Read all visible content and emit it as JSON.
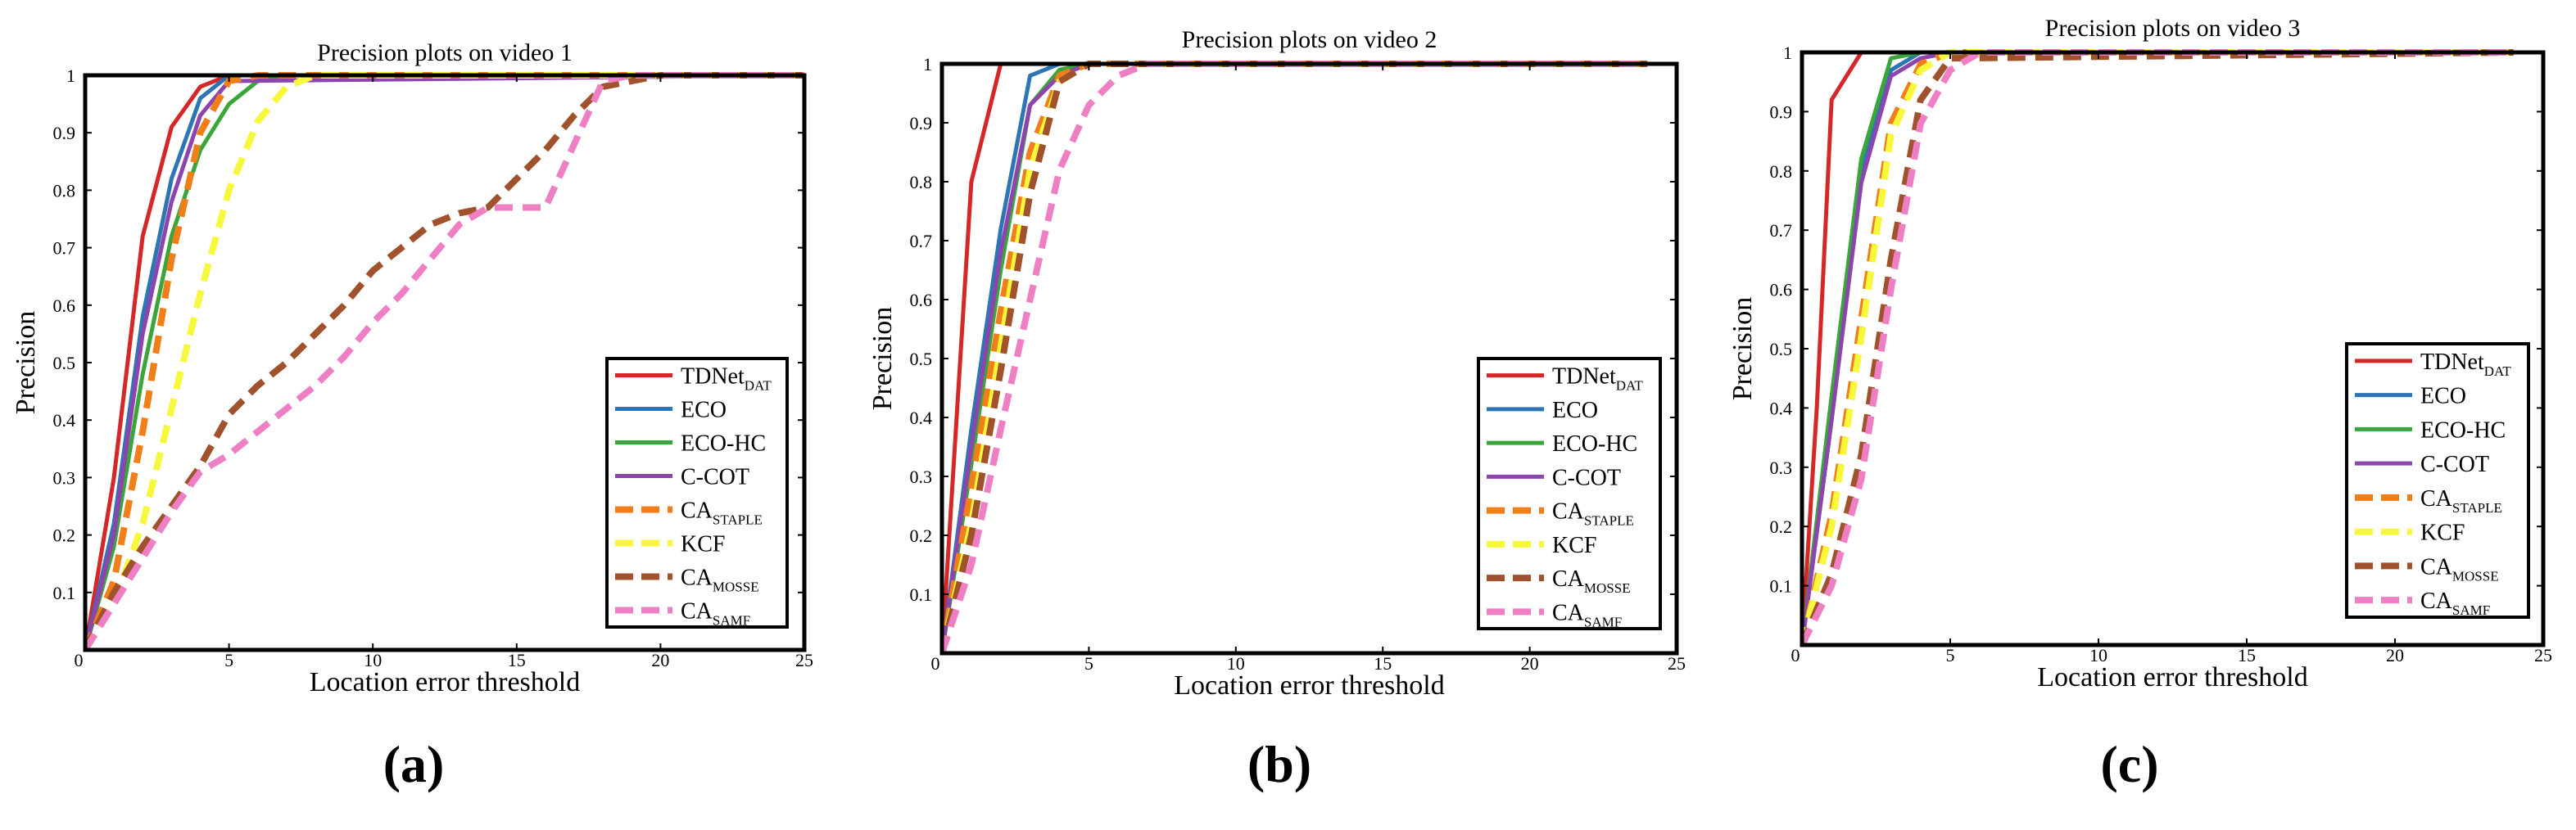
{
  "chart_data": [
    {
      "type": "line",
      "title": "Precision plots on video 1",
      "xlabel": "Location error threshold",
      "ylabel": "Precision",
      "xlim": [
        0,
        25
      ],
      "ylim": [
        0,
        1
      ],
      "xticks": [
        "0",
        "5",
        "10",
        "15",
        "20",
        "25"
      ],
      "yticks": [
        "0",
        "0.1",
        "0.2",
        "0.3",
        "0.4",
        "0.5",
        "0.6",
        "0.7",
        "0.8",
        "0.9",
        "1"
      ],
      "panel_label": "(a)",
      "series": [
        {
          "name": "TDNet",
          "sub": "DAT",
          "color": "#d62728",
          "dash": false,
          "x": [
            0,
            1,
            2,
            3,
            4,
            5,
            25
          ],
          "y": [
            0,
            0.3,
            0.72,
            0.91,
            0.98,
            1.0,
            1.0
          ]
        },
        {
          "name": "ECO",
          "sub": "",
          "color": "#2e75b6",
          "dash": false,
          "x": [
            0,
            1,
            2,
            3,
            4,
            5,
            25
          ],
          "y": [
            0,
            0.22,
            0.58,
            0.82,
            0.96,
            1.0,
            1.0
          ]
        },
        {
          "name": "ECO-HC",
          "sub": "",
          "color": "#3aa63a",
          "dash": false,
          "x": [
            0,
            1,
            2,
            3,
            4,
            5,
            6,
            7,
            25
          ],
          "y": [
            0,
            0.18,
            0.48,
            0.72,
            0.87,
            0.95,
            0.99,
            1.0,
            1.0
          ]
        },
        {
          "name": "C-COT",
          "sub": "",
          "color": "#8e44ad",
          "dash": false,
          "x": [
            0,
            1,
            2,
            3,
            4,
            5,
            25
          ],
          "y": [
            0,
            0.2,
            0.55,
            0.78,
            0.93,
            0.99,
            1.0
          ]
        },
        {
          "name": "CA",
          "sub": "STAPLE",
          "color": "#f07f1a",
          "dash": true,
          "x": [
            0,
            1,
            2,
            3,
            4,
            5,
            6,
            25
          ],
          "y": [
            0,
            0.12,
            0.38,
            0.68,
            0.9,
            0.99,
            1.0,
            1.0
          ]
        },
        {
          "name": "KCF",
          "sub": "",
          "color": "#f7f73c",
          "dash": true,
          "x": [
            0,
            1,
            2,
            3,
            4,
            5,
            6,
            7,
            8,
            25
          ],
          "y": [
            0,
            0.08,
            0.22,
            0.42,
            0.62,
            0.8,
            0.92,
            0.98,
            1.0,
            1.0
          ]
        },
        {
          "name": "CA",
          "sub": "MOSSE",
          "color": "#a0522d",
          "dash": true,
          "x": [
            0,
            1,
            2,
            3,
            4,
            5,
            6,
            7,
            8,
            9,
            10,
            11,
            12,
            13,
            14,
            15,
            16,
            17,
            18,
            19,
            20,
            25
          ],
          "y": [
            0,
            0.1,
            0.18,
            0.25,
            0.32,
            0.41,
            0.46,
            0.5,
            0.55,
            0.6,
            0.66,
            0.7,
            0.74,
            0.76,
            0.77,
            0.82,
            0.87,
            0.93,
            0.98,
            0.99,
            1.0,
            1.0
          ]
        },
        {
          "name": "CA",
          "sub": "SAMF",
          "color": "#ef7fc4",
          "dash": true,
          "x": [
            0,
            1,
            2,
            3,
            4,
            5,
            6,
            7,
            8,
            9,
            10,
            11,
            12,
            13,
            14,
            15,
            16,
            17,
            18,
            19,
            20,
            25
          ],
          "y": [
            0,
            0.08,
            0.16,
            0.24,
            0.31,
            0.34,
            0.38,
            0.42,
            0.46,
            0.51,
            0.57,
            0.62,
            0.68,
            0.74,
            0.77,
            0.77,
            0.77,
            0.88,
            0.99,
            1.0,
            1.0,
            1.0
          ]
        }
      ]
    },
    {
      "type": "line",
      "title": "Precision plots on video 2",
      "xlabel": "Location error threshold",
      "ylabel": "Precision",
      "xlim": [
        0,
        25
      ],
      "ylim": [
        0,
        1
      ],
      "xticks": [
        "0",
        "5",
        "10",
        "15",
        "20",
        "25"
      ],
      "yticks": [
        "0",
        "0.1",
        "0.2",
        "0.3",
        "0.4",
        "0.5",
        "0.6",
        "0.7",
        "0.8",
        "0.9",
        "1"
      ],
      "panel_label": "(b)",
      "series": [
        {
          "name": "TDNet",
          "sub": "DAT",
          "color": "#d62728",
          "dash": false,
          "x": [
            0,
            1,
            2,
            24
          ],
          "y": [
            0,
            0.8,
            1.0,
            1.0
          ]
        },
        {
          "name": "ECO",
          "sub": "",
          "color": "#2e75b6",
          "dash": false,
          "x": [
            0,
            1,
            2,
            3,
            4,
            24
          ],
          "y": [
            0,
            0.38,
            0.72,
            0.98,
            1.0,
            1.0
          ]
        },
        {
          "name": "ECO-HC",
          "sub": "",
          "color": "#3aa63a",
          "dash": false,
          "x": [
            0,
            1,
            2,
            3,
            4,
            5,
            24
          ],
          "y": [
            0,
            0.32,
            0.65,
            0.93,
            0.99,
            1.0,
            1.0
          ]
        },
        {
          "name": "C-COT",
          "sub": "",
          "color": "#8e44ad",
          "dash": false,
          "x": [
            0,
            1,
            2,
            3,
            4,
            5,
            24
          ],
          "y": [
            0,
            0.35,
            0.68,
            0.93,
            0.98,
            1.0,
            1.0
          ]
        },
        {
          "name": "CA",
          "sub": "STAPLE",
          "color": "#f07f1a",
          "dash": true,
          "x": [
            0,
            1,
            2,
            3,
            4,
            5,
            24
          ],
          "y": [
            0,
            0.28,
            0.58,
            0.85,
            0.98,
            1.0,
            1.0
          ]
        },
        {
          "name": "KCF",
          "sub": "",
          "color": "#f7f73c",
          "dash": true,
          "x": [
            0,
            1,
            2,
            3,
            4,
            5,
            24
          ],
          "y": [
            0,
            0.22,
            0.52,
            0.82,
            0.97,
            1.0,
            1.0
          ]
        },
        {
          "name": "CA",
          "sub": "MOSSE",
          "color": "#a0522d",
          "dash": true,
          "x": [
            0,
            1,
            2,
            3,
            4,
            5,
            24
          ],
          "y": [
            0,
            0.2,
            0.48,
            0.78,
            0.97,
            1.0,
            1.0
          ]
        },
        {
          "name": "CA",
          "sub": "SAMF",
          "color": "#ef7fc4",
          "dash": true,
          "x": [
            0,
            1,
            2,
            3,
            4,
            5,
            6,
            7,
            24
          ],
          "y": [
            0,
            0.15,
            0.38,
            0.6,
            0.82,
            0.93,
            0.98,
            1.0,
            1.0
          ]
        }
      ]
    },
    {
      "type": "line",
      "title": "Precision plots on video 3",
      "xlabel": "Location error threshold",
      "ylabel": "Precision",
      "xlim": [
        0,
        25
      ],
      "ylim": [
        0,
        1
      ],
      "xticks": [
        "0",
        "5",
        "10",
        "15",
        "20",
        "25"
      ],
      "yticks": [
        "0",
        "0.1",
        "0.2",
        "0.3",
        "0.4",
        "0.5",
        "0.6",
        "0.7",
        "0.8",
        "0.9",
        "1"
      ],
      "panel_label": "(c)",
      "series": [
        {
          "name": "TDNet",
          "sub": "DAT",
          "color": "#d62728",
          "dash": false,
          "x": [
            0,
            0.5,
            1,
            2,
            24
          ],
          "y": [
            0,
            0.4,
            0.92,
            1.0,
            1.0
          ]
        },
        {
          "name": "ECO",
          "sub": "",
          "color": "#2e75b6",
          "dash": false,
          "x": [
            0,
            1,
            2,
            3,
            4,
            5,
            24
          ],
          "y": [
            0,
            0.38,
            0.8,
            0.97,
            1.0,
            1.0,
            1.0
          ]
        },
        {
          "name": "ECO-HC",
          "sub": "",
          "color": "#3aa63a",
          "dash": false,
          "x": [
            0,
            1,
            2,
            3,
            4,
            5,
            24
          ],
          "y": [
            0,
            0.42,
            0.82,
            0.99,
            1.0,
            1.0,
            1.0
          ]
        },
        {
          "name": "C-COT",
          "sub": "",
          "color": "#8e44ad",
          "dash": false,
          "x": [
            0,
            1,
            2,
            3,
            4,
            5,
            24
          ],
          "y": [
            0,
            0.38,
            0.78,
            0.96,
            0.99,
            1.0,
            1.0
          ]
        },
        {
          "name": "CA",
          "sub": "STAPLE",
          "color": "#f07f1a",
          "dash": true,
          "x": [
            0,
            1,
            2,
            3,
            4,
            5,
            24
          ],
          "y": [
            0,
            0.22,
            0.55,
            0.88,
            0.98,
            1.0,
            1.0
          ]
        },
        {
          "name": "KCF",
          "sub": "",
          "color": "#f7f73c",
          "dash": true,
          "x": [
            0,
            1,
            2,
            3,
            4,
            5,
            24
          ],
          "y": [
            0,
            0.2,
            0.52,
            0.86,
            0.97,
            1.0,
            1.0
          ]
        },
        {
          "name": "CA",
          "sub": "MOSSE",
          "color": "#a0522d",
          "dash": true,
          "x": [
            0,
            1,
            2,
            3,
            4,
            5,
            24
          ],
          "y": [
            0,
            0.12,
            0.32,
            0.65,
            0.92,
            0.99,
            1.0
          ]
        },
        {
          "name": "CA",
          "sub": "SAMF",
          "color": "#ef7fc4",
          "dash": true,
          "x": [
            0,
            1,
            2,
            3,
            4,
            5,
            6,
            24
          ],
          "y": [
            0,
            0.1,
            0.28,
            0.6,
            0.88,
            0.97,
            1.0,
            1.0
          ]
        }
      ]
    }
  ]
}
